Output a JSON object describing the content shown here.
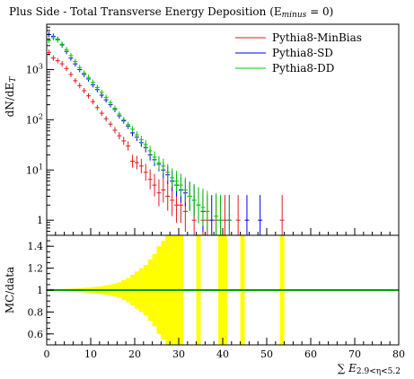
{
  "title": "Plus Side - Total Transverse Energy Deposition (E",
  "title_sub": "minus",
  "title_end": " = 0)",
  "chart_data": [
    {
      "type": "scatter",
      "panel": "main",
      "ylabel": "dN/dE",
      "ylabel_sub": "T",
      "yscale": "log",
      "ylim": [
        0.5,
        8000
      ],
      "xlim": [
        0,
        80
      ],
      "yticks": [
        {
          "value": 1,
          "label": "1"
        },
        {
          "value": 10,
          "label": "10",
          "sup": "1"
        },
        {
          "value": 100,
          "label": "10",
          "sup": "2"
        },
        {
          "value": 1000,
          "label": "10",
          "sup": "3"
        },
        {
          "value": 10000,
          "label": "10",
          "sup": "4"
        }
      ],
      "legend_position": "top-right",
      "series": [
        {
          "name": "Pythia8-MinBias",
          "color": "#e41a1c",
          "points": [
            [
              0.5,
              2200
            ],
            [
              1.5,
              1700
            ],
            [
              2.5,
              1500
            ],
            [
              3.5,
              1300
            ],
            [
              4.5,
              1050
            ],
            [
              5.5,
              800
            ],
            [
              6.5,
              600
            ],
            [
              7.5,
              480
            ],
            [
              8.5,
              380
            ],
            [
              9.5,
              300
            ],
            [
              10.5,
              230
            ],
            [
              11.5,
              175
            ],
            [
              12.5,
              135
            ],
            [
              13.5,
              105
            ],
            [
              14.5,
              82
            ],
            [
              15.5,
              62
            ],
            [
              16.5,
              48
            ],
            [
              17.5,
              38
            ],
            [
              18.5,
              30
            ],
            [
              19.5,
              15
            ],
            [
              20.5,
              14
            ],
            [
              21.5,
              12
            ],
            [
              22.5,
              9
            ],
            [
              23.5,
              6.5
            ],
            [
              24.5,
              5
            ],
            [
              25.5,
              3.5
            ],
            [
              26.5,
              4
            ],
            [
              27.5,
              3
            ],
            [
              28.5,
              2.5
            ],
            [
              29.5,
              2
            ],
            [
              30.5,
              2
            ],
            [
              31.5,
              1.5
            ],
            [
              33.5,
              1
            ],
            [
              35.5,
              1
            ],
            [
              36.5,
              1
            ],
            [
              38.5,
              1
            ],
            [
              40.5,
              1
            ],
            [
              43.5,
              1
            ],
            [
              53.5,
              1
            ]
          ]
        },
        {
          "name": "Pythia8-SD",
          "color": "#0000ff",
          "points": [
            [
              0.5,
              5000
            ],
            [
              1.5,
              4600
            ],
            [
              2.5,
              4000
            ],
            [
              3.5,
              3100
            ],
            [
              4.5,
              2300
            ],
            [
              5.5,
              1700
            ],
            [
              6.5,
              1300
            ],
            [
              7.5,
              1000
            ],
            [
              8.5,
              800
            ],
            [
              9.5,
              650
            ],
            [
              10.5,
              500
            ],
            [
              11.5,
              400
            ],
            [
              12.5,
              310
            ],
            [
              13.5,
              250
            ],
            [
              14.5,
              200
            ],
            [
              15.5,
              160
            ],
            [
              16.5,
              120
            ],
            [
              17.5,
              95
            ],
            [
              18.5,
              75
            ],
            [
              19.5,
              55
            ],
            [
              20.5,
              45
            ],
            [
              21.5,
              35
            ],
            [
              22.5,
              28
            ],
            [
              23.5,
              20
            ],
            [
              24.5,
              16
            ],
            [
              25.5,
              13
            ],
            [
              26.5,
              10
            ],
            [
              27.5,
              8
            ],
            [
              28.5,
              6
            ],
            [
              29.5,
              5
            ],
            [
              30.5,
              4
            ],
            [
              31.5,
              3.5
            ],
            [
              32.5,
              3
            ],
            [
              33.5,
              2.5
            ],
            [
              34.5,
              2
            ],
            [
              35.5,
              1.5
            ],
            [
              37.5,
              1
            ],
            [
              39.5,
              1
            ],
            [
              41.5,
              1
            ],
            [
              45.5,
              1
            ],
            [
              48.5,
              1
            ]
          ]
        },
        {
          "name": "Pythia8-DD",
          "color": "#00cc00",
          "points": [
            [
              0.5,
              3800
            ],
            [
              1.5,
              4300
            ],
            [
              2.5,
              3900
            ],
            [
              3.5,
              3200
            ],
            [
              4.5,
              2500
            ],
            [
              5.5,
              1900
            ],
            [
              6.5,
              1450
            ],
            [
              7.5,
              1100
            ],
            [
              8.5,
              850
            ],
            [
              9.5,
              700
            ],
            [
              10.5,
              560
            ],
            [
              11.5,
              440
            ],
            [
              12.5,
              350
            ],
            [
              13.5,
              280
            ],
            [
              14.5,
              220
            ],
            [
              15.5,
              170
            ],
            [
              16.5,
              130
            ],
            [
              17.5,
              100
            ],
            [
              18.5,
              80
            ],
            [
              19.5,
              65
            ],
            [
              20.5,
              50
            ],
            [
              21.5,
              40
            ],
            [
              22.5,
              32
            ],
            [
              23.5,
              24
            ],
            [
              24.5,
              18
            ],
            [
              25.5,
              14
            ],
            [
              26.5,
              12
            ],
            [
              27.5,
              9
            ],
            [
              28.5,
              7
            ],
            [
              29.5,
              6
            ],
            [
              30.5,
              5
            ],
            [
              31.5,
              4
            ],
            [
              32.5,
              3
            ],
            [
              33.5,
              2.5
            ],
            [
              34.5,
              2
            ],
            [
              35.5,
              1.8
            ],
            [
              36.5,
              1.5
            ],
            [
              38.5,
              1.2
            ],
            [
              39.5,
              1
            ],
            [
              41.5,
              1
            ]
          ]
        }
      ]
    },
    {
      "type": "area",
      "panel": "ratio",
      "ylabel": "MC/data",
      "xlabel": "E",
      "xlabel_sub": "2.9<η<5.2",
      "ylim": [
        0.5,
        1.5
      ],
      "xlim": [
        0,
        80
      ],
      "yticks": [
        0.6,
        0.8,
        1,
        1.2,
        1.4
      ],
      "xticks": [
        0,
        10,
        20,
        30,
        40,
        50,
        60,
        70,
        80
      ],
      "band_color": "#ffff00",
      "band_half_width": [
        [
          0,
          0.005
        ],
        [
          1,
          0.007
        ],
        [
          2,
          0.008
        ],
        [
          3,
          0.009
        ],
        [
          4,
          0.011
        ],
        [
          5,
          0.013
        ],
        [
          6,
          0.015
        ],
        [
          7,
          0.018
        ],
        [
          8,
          0.02
        ],
        [
          9,
          0.023
        ],
        [
          10,
          0.027
        ],
        [
          11,
          0.031
        ],
        [
          12,
          0.036
        ],
        [
          13,
          0.042
        ],
        [
          14,
          0.05
        ],
        [
          15,
          0.06
        ],
        [
          16,
          0.07
        ],
        [
          17,
          0.09
        ],
        [
          18,
          0.11
        ],
        [
          19,
          0.14
        ],
        [
          20,
          0.17
        ],
        [
          21,
          0.2
        ],
        [
          22,
          0.23
        ],
        [
          23,
          0.28
        ],
        [
          24,
          0.33
        ],
        [
          25,
          0.4
        ],
        [
          26,
          0.45
        ],
        [
          27,
          0.5
        ],
        [
          28,
          0.5
        ],
        [
          29,
          0.5
        ],
        [
          30,
          0.5
        ]
      ],
      "band_full_bins": [
        [
          34,
          35
        ],
        [
          39,
          41
        ],
        [
          44,
          45
        ],
        [
          53,
          54
        ]
      ],
      "reference_line": 1
    }
  ]
}
